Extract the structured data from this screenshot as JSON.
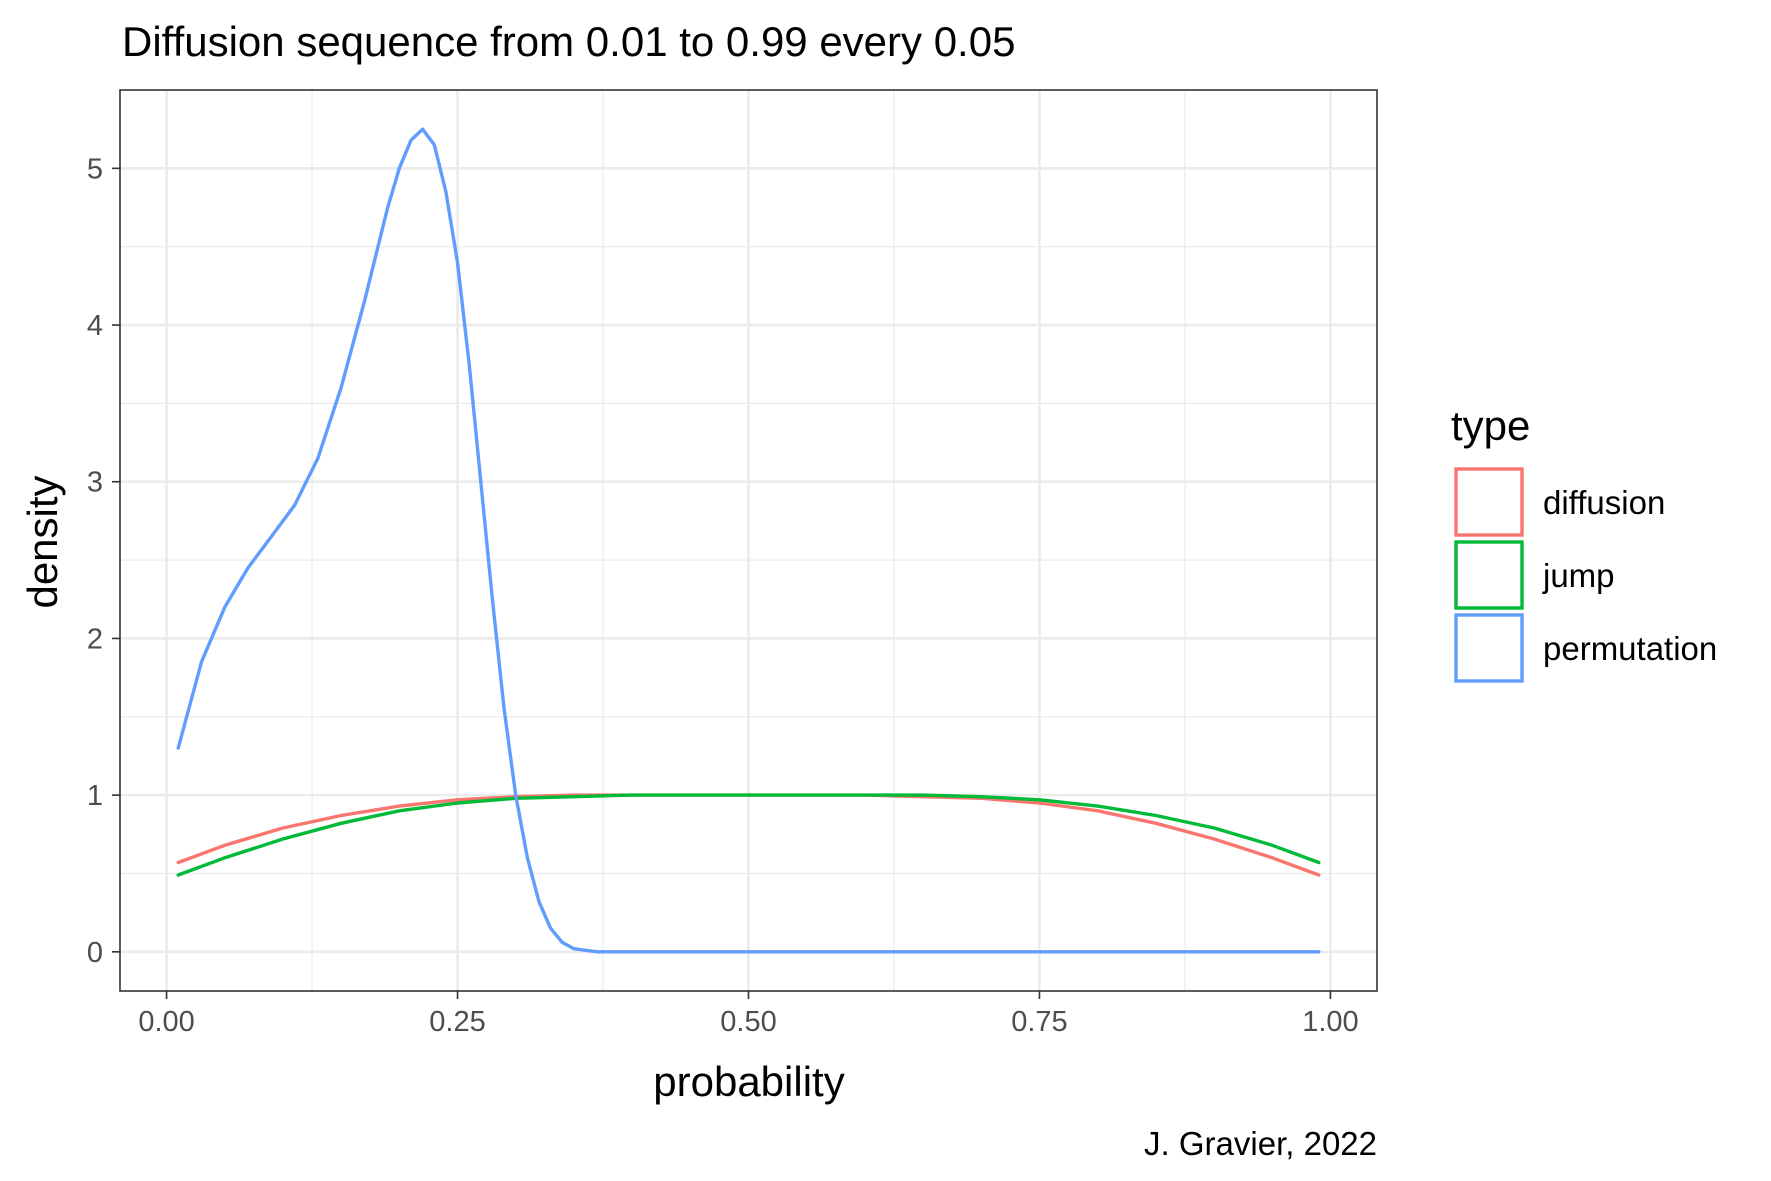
{
  "chart_data": {
    "type": "line",
    "title": "Diffusion sequence from 0.01 to 0.99 every 0.05",
    "xlabel": "probability",
    "ylabel": "density",
    "caption": "J. Gravier, 2022",
    "xlim": [
      -0.04,
      1.04
    ],
    "ylim": [
      -0.25,
      5.5
    ],
    "xticks": [
      0.0,
      0.25,
      0.5,
      0.75,
      1.0
    ],
    "xtick_labels": [
      "0.00",
      "0.25",
      "0.50",
      "0.75",
      "1.00"
    ],
    "yticks": [
      0,
      1,
      2,
      3,
      4,
      5
    ],
    "ytick_labels": [
      "0",
      "1",
      "2",
      "3",
      "4",
      "5"
    ],
    "grid": true,
    "legend": {
      "title": "type",
      "position": "right"
    },
    "series": [
      {
        "name": "diffusion",
        "color": "#F8766D",
        "x": [
          0.01,
          0.05,
          0.1,
          0.15,
          0.2,
          0.25,
          0.3,
          0.35,
          0.4,
          0.45,
          0.5,
          0.55,
          0.6,
          0.65,
          0.7,
          0.75,
          0.8,
          0.85,
          0.9,
          0.95,
          0.99
        ],
        "y": [
          0.57,
          0.68,
          0.79,
          0.87,
          0.93,
          0.97,
          0.99,
          1.0,
          1.0,
          1.0,
          1.0,
          1.0,
          1.0,
          0.99,
          0.98,
          0.95,
          0.9,
          0.82,
          0.72,
          0.6,
          0.49
        ]
      },
      {
        "name": "jump",
        "color": "#00BA38",
        "x": [
          0.01,
          0.05,
          0.1,
          0.15,
          0.2,
          0.25,
          0.3,
          0.35,
          0.4,
          0.45,
          0.5,
          0.55,
          0.6,
          0.65,
          0.7,
          0.75,
          0.8,
          0.85,
          0.9,
          0.95,
          0.99
        ],
        "y": [
          0.49,
          0.6,
          0.72,
          0.82,
          0.9,
          0.95,
          0.98,
          0.99,
          1.0,
          1.0,
          1.0,
          1.0,
          1.0,
          1.0,
          0.99,
          0.97,
          0.93,
          0.87,
          0.79,
          0.68,
          0.57
        ]
      },
      {
        "name": "permutation",
        "color": "#619CFF",
        "x": [
          0.01,
          0.03,
          0.05,
          0.07,
          0.09,
          0.11,
          0.13,
          0.15,
          0.17,
          0.19,
          0.2,
          0.21,
          0.22,
          0.23,
          0.24,
          0.25,
          0.26,
          0.27,
          0.28,
          0.29,
          0.3,
          0.31,
          0.32,
          0.33,
          0.34,
          0.35,
          0.36,
          0.37,
          0.38,
          0.4,
          0.45,
          0.5,
          0.6,
          0.7,
          0.8,
          0.9,
          0.99
        ],
        "y": [
          1.3,
          1.85,
          2.2,
          2.45,
          2.65,
          2.85,
          3.15,
          3.6,
          4.15,
          4.75,
          5.0,
          5.18,
          5.25,
          5.15,
          4.85,
          4.4,
          3.75,
          3.0,
          2.25,
          1.55,
          1.0,
          0.6,
          0.32,
          0.15,
          0.06,
          0.02,
          0.01,
          0.0,
          0.0,
          0.0,
          0.0,
          0.0,
          0.0,
          0.0,
          0.0,
          0.0,
          0.0
        ]
      }
    ]
  }
}
